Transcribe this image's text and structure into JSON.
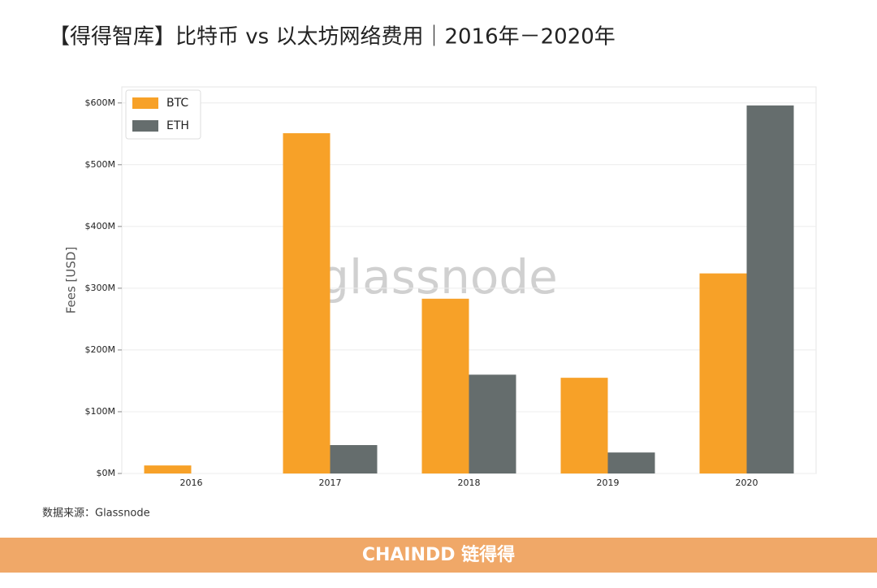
{
  "chart_data": {
    "type": "bar",
    "title": "【得得智库】比特币 vs 以太坊网络费用｜2016年－2020年",
    "y_label": "Fees [USD]",
    "watermark": "glassnode",
    "categories": [
      "2016",
      "2017",
      "2018",
      "2019",
      "2020"
    ],
    "series": [
      {
        "name": "BTC",
        "color": "#f7a128",
        "values": [
          13,
          551,
          283,
          155,
          324
        ]
      },
      {
        "name": "ETH",
        "color": "#656d6d",
        "values": [
          0,
          46,
          160,
          34,
          596
        ]
      }
    ],
    "ylim": [
      0,
      626
    ],
    "yticks": [
      {
        "value": 0,
        "label": "$0M"
      },
      {
        "value": 100,
        "label": "$100M"
      },
      {
        "value": 200,
        "label": "$200M"
      },
      {
        "value": 300,
        "label": "$300M"
      },
      {
        "value": 400,
        "label": "$400M"
      },
      {
        "value": 500,
        "label": "$500M"
      },
      {
        "value": 600,
        "label": "$600M"
      }
    ],
    "grid": true,
    "legend": "upper left"
  },
  "source": "数据来源：Glassnode",
  "footer": "CHAINDD 链得得"
}
